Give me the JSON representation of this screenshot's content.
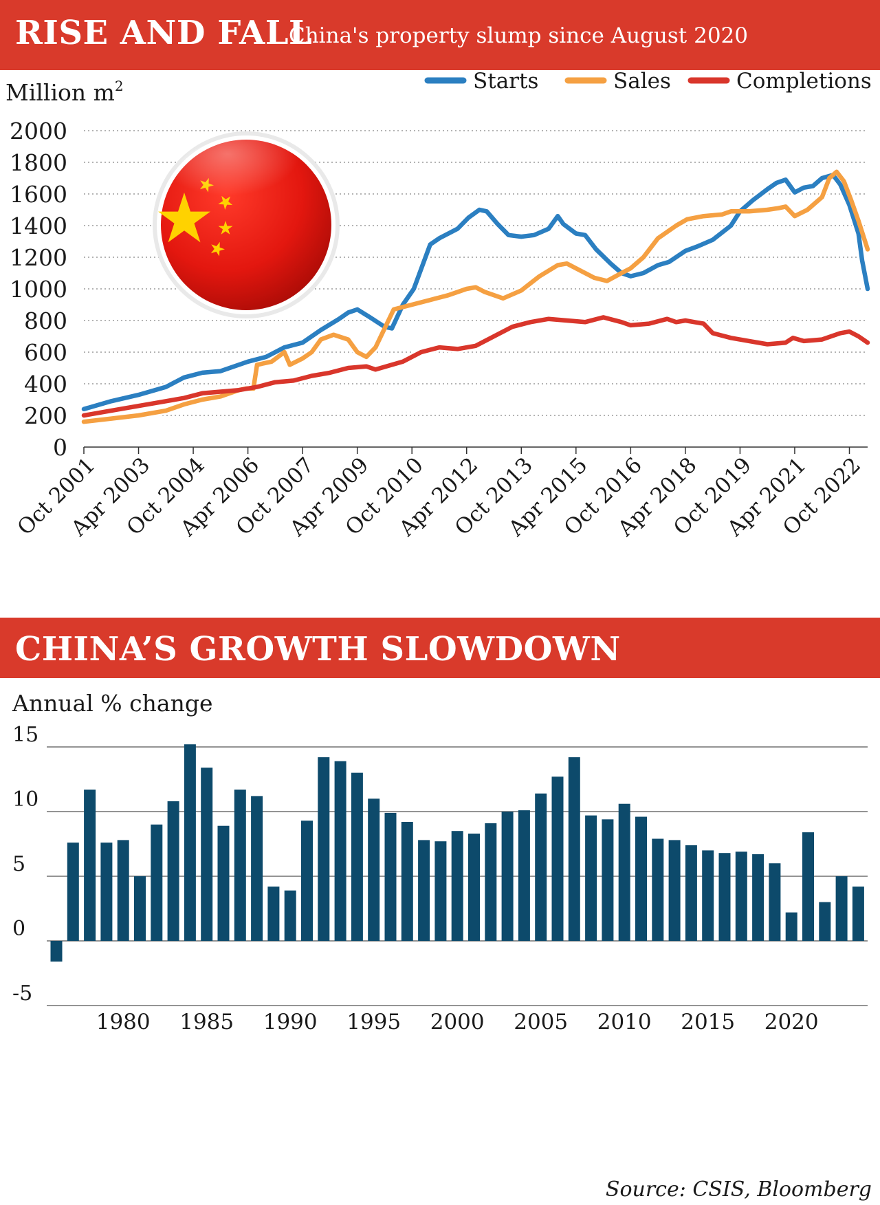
{
  "header1": {
    "title": "RISE AND FALL",
    "subtitle": "China's property slump since August 2020"
  },
  "header2": {
    "title": "CHINA’S GROWTH SLOWDOWN"
  },
  "source": "Source: CSIS, Bloomberg",
  "colors": {
    "banner": "#d93a2b",
    "starts": "#2b7fc1",
    "sales": "#f5a042",
    "completions": "#d9362b",
    "bars": "#0d4a6b"
  },
  "chart_data": [
    {
      "type": "line",
      "ylabel": "Million m",
      "ylabel_superscript": "2",
      "ylim": [
        0,
        2000
      ],
      "yticks": [
        0,
        200,
        400,
        600,
        800,
        1000,
        1200,
        1400,
        1600,
        1800,
        2000
      ],
      "x_tick_labels": [
        "Oct 2001",
        "Apr 2003",
        "Oct 2004",
        "Apr 2006",
        "Oct 2007",
        "Apr 2009",
        "Oct 2010",
        "Apr 2012",
        "Oct 2013",
        "Apr 2015",
        "Oct 2016",
        "Apr 2018",
        "Oct 2019",
        "Apr 2021",
        "Oct 2022"
      ],
      "x_tick_positions": [
        2001.75,
        2003.25,
        2004.75,
        2006.25,
        2007.75,
        2009.25,
        2010.75,
        2012.25,
        2013.75,
        2015.25,
        2016.75,
        2018.25,
        2019.75,
        2021.25,
        2022.75
      ],
      "xlim": [
        2001.75,
        2023.25
      ],
      "grid": true,
      "legend": "top-right",
      "decoration": "china-flag-badge",
      "series": [
        {
          "name": "Starts",
          "color": "#2b7fc1",
          "points": [
            [
              2001.75,
              240
            ],
            [
              2002.5,
              290
            ],
            [
              2003.25,
              330
            ],
            [
              2004.0,
              380
            ],
            [
              2004.5,
              440
            ],
            [
              2005.0,
              470
            ],
            [
              2005.5,
              480
            ],
            [
              2006.25,
              540
            ],
            [
              2006.75,
              570
            ],
            [
              2007.25,
              630
            ],
            [
              2007.75,
              660
            ],
            [
              2008.25,
              740
            ],
            [
              2008.75,
              810
            ],
            [
              2009.0,
              850
            ],
            [
              2009.25,
              870
            ],
            [
              2009.6,
              820
            ],
            [
              2010.0,
              760
            ],
            [
              2010.2,
              750
            ],
            [
              2010.5,
              900
            ],
            [
              2010.8,
              1000
            ],
            [
              2011.25,
              1280
            ],
            [
              2011.5,
              1320
            ],
            [
              2012.0,
              1380
            ],
            [
              2012.3,
              1450
            ],
            [
              2012.6,
              1500
            ],
            [
              2012.8,
              1490
            ],
            [
              2013.1,
              1410
            ],
            [
              2013.4,
              1340
            ],
            [
              2013.75,
              1330
            ],
            [
              2014.1,
              1340
            ],
            [
              2014.5,
              1380
            ],
            [
              2014.75,
              1460
            ],
            [
              2014.9,
              1410
            ],
            [
              2015.25,
              1350
            ],
            [
              2015.5,
              1340
            ],
            [
              2015.8,
              1250
            ],
            [
              2016.2,
              1160
            ],
            [
              2016.5,
              1100
            ],
            [
              2016.75,
              1080
            ],
            [
              2017.1,
              1100
            ],
            [
              2017.5,
              1150
            ],
            [
              2017.8,
              1170
            ],
            [
              2018.25,
              1240
            ],
            [
              2018.6,
              1270
            ],
            [
              2019.0,
              1310
            ],
            [
              2019.5,
              1400
            ],
            [
              2019.75,
              1490
            ],
            [
              2020.1,
              1560
            ],
            [
              2020.5,
              1630
            ],
            [
              2020.75,
              1670
            ],
            [
              2021.0,
              1690
            ],
            [
              2021.25,
              1610
            ],
            [
              2021.5,
              1640
            ],
            [
              2021.75,
              1650
            ],
            [
              2022.0,
              1700
            ],
            [
              2022.3,
              1720
            ],
            [
              2022.5,
              1660
            ],
            [
              2022.75,
              1530
            ],
            [
              2023.0,
              1350
            ],
            [
              2023.1,
              1180
            ],
            [
              2023.25,
              1000
            ]
          ]
        },
        {
          "name": "Sales",
          "color": "#f5a042",
          "points": [
            [
              2001.75,
              160
            ],
            [
              2002.5,
              180
            ],
            [
              2003.25,
              200
            ],
            [
              2004.0,
              230
            ],
            [
              2004.5,
              270
            ],
            [
              2005.0,
              300
            ],
            [
              2005.5,
              320
            ],
            [
              2006.0,
              360
            ],
            [
              2006.2,
              370
            ],
            [
              2006.4,
              370
            ],
            [
              2006.5,
              520
            ],
            [
              2006.9,
              540
            ],
            [
              2007.25,
              600
            ],
            [
              2007.4,
              520
            ],
            [
              2007.75,
              560
            ],
            [
              2008.0,
              600
            ],
            [
              2008.25,
              680
            ],
            [
              2008.6,
              710
            ],
            [
              2009.0,
              680
            ],
            [
              2009.25,
              600
            ],
            [
              2009.5,
              570
            ],
            [
              2009.75,
              630
            ],
            [
              2010.25,
              870
            ],
            [
              2010.75,
              900
            ],
            [
              2011.25,
              930
            ],
            [
              2011.75,
              960
            ],
            [
              2012.25,
              1000
            ],
            [
              2012.5,
              1010
            ],
            [
              2012.75,
              980
            ],
            [
              2013.25,
              940
            ],
            [
              2013.75,
              990
            ],
            [
              2014.25,
              1080
            ],
            [
              2014.75,
              1150
            ],
            [
              2015.0,
              1160
            ],
            [
              2015.25,
              1130
            ],
            [
              2015.75,
              1070
            ],
            [
              2016.1,
              1050
            ],
            [
              2016.5,
              1100
            ],
            [
              2016.75,
              1130
            ],
            [
              2017.1,
              1200
            ],
            [
              2017.5,
              1320
            ],
            [
              2018.0,
              1400
            ],
            [
              2018.3,
              1440
            ],
            [
              2018.75,
              1460
            ],
            [
              2019.25,
              1470
            ],
            [
              2019.5,
              1490
            ],
            [
              2020.0,
              1490
            ],
            [
              2020.5,
              1500
            ],
            [
              2020.8,
              1510
            ],
            [
              2021.0,
              1520
            ],
            [
              2021.25,
              1460
            ],
            [
              2021.6,
              1500
            ],
            [
              2022.0,
              1580
            ],
            [
              2022.2,
              1700
            ],
            [
              2022.4,
              1740
            ],
            [
              2022.6,
              1680
            ],
            [
              2022.8,
              1560
            ],
            [
              2023.0,
              1430
            ],
            [
              2023.25,
              1250
            ]
          ]
        },
        {
          "name": "Completions",
          "color": "#d9362b",
          "points": [
            [
              2001.75,
              200
            ],
            [
              2002.5,
              230
            ],
            [
              2003.25,
              260
            ],
            [
              2004.0,
              290
            ],
            [
              2004.5,
              310
            ],
            [
              2005.0,
              340
            ],
            [
              2005.5,
              350
            ],
            [
              2006.0,
              360
            ],
            [
              2006.5,
              380
            ],
            [
              2007.0,
              410
            ],
            [
              2007.5,
              420
            ],
            [
              2008.0,
              450
            ],
            [
              2008.5,
              470
            ],
            [
              2009.0,
              500
            ],
            [
              2009.5,
              510
            ],
            [
              2009.75,
              490
            ],
            [
              2010.5,
              540
            ],
            [
              2011.0,
              600
            ],
            [
              2011.5,
              630
            ],
            [
              2012.0,
              620
            ],
            [
              2012.5,
              640
            ],
            [
              2013.0,
              700
            ],
            [
              2013.5,
              760
            ],
            [
              2014.0,
              790
            ],
            [
              2014.5,
              810
            ],
            [
              2015.0,
              800
            ],
            [
              2015.5,
              790
            ],
            [
              2016.0,
              820
            ],
            [
              2016.5,
              790
            ],
            [
              2016.75,
              770
            ],
            [
              2017.25,
              780
            ],
            [
              2017.75,
              810
            ],
            [
              2018.0,
              790
            ],
            [
              2018.25,
              800
            ],
            [
              2018.75,
              780
            ],
            [
              2019.0,
              720
            ],
            [
              2019.5,
              690
            ],
            [
              2020.0,
              670
            ],
            [
              2020.5,
              650
            ],
            [
              2021.0,
              660
            ],
            [
              2021.2,
              690
            ],
            [
              2021.5,
              670
            ],
            [
              2022.0,
              680
            ],
            [
              2022.5,
              720
            ],
            [
              2022.75,
              730
            ],
            [
              2023.0,
              700
            ],
            [
              2023.25,
              660
            ]
          ]
        }
      ]
    },
    {
      "type": "bar",
      "ylabel": "Annual % change",
      "ylim": [
        -5,
        15
      ],
      "yticks": [
        -5,
        0,
        5,
        10,
        15
      ],
      "grid": true,
      "categories": [
        1976,
        1977,
        1978,
        1979,
        1980,
        1981,
        1982,
        1983,
        1984,
        1985,
        1986,
        1987,
        1988,
        1989,
        1990,
        1991,
        1992,
        1993,
        1994,
        1995,
        1996,
        1997,
        1998,
        1999,
        2000,
        2001,
        2002,
        2003,
        2004,
        2005,
        2006,
        2007,
        2008,
        2009,
        2010,
        2011,
        2012,
        2013,
        2014,
        2015,
        2016,
        2017,
        2018,
        2019,
        2020,
        2021,
        2022,
        2023,
        2024
      ],
      "values": [
        -1.6,
        7.6,
        11.7,
        7.6,
        7.8,
        5.0,
        9.0,
        10.8,
        15.2,
        13.4,
        8.9,
        11.7,
        11.2,
        4.2,
        3.9,
        9.3,
        14.2,
        13.9,
        13.0,
        11.0,
        9.9,
        9.2,
        7.8,
        7.7,
        8.5,
        8.3,
        9.1,
        10.0,
        10.1,
        11.4,
        12.7,
        14.2,
        9.7,
        9.4,
        10.6,
        9.6,
        7.9,
        7.8,
        7.4,
        7.0,
        6.8,
        6.9,
        6.7,
        6.0,
        2.2,
        8.4,
        3.0,
        5.0,
        4.2
      ],
      "x_tick_labels": [
        "1980",
        "1985",
        "1990",
        "1995",
        "2000",
        "2005",
        "2010",
        "2015",
        "2020"
      ]
    }
  ]
}
